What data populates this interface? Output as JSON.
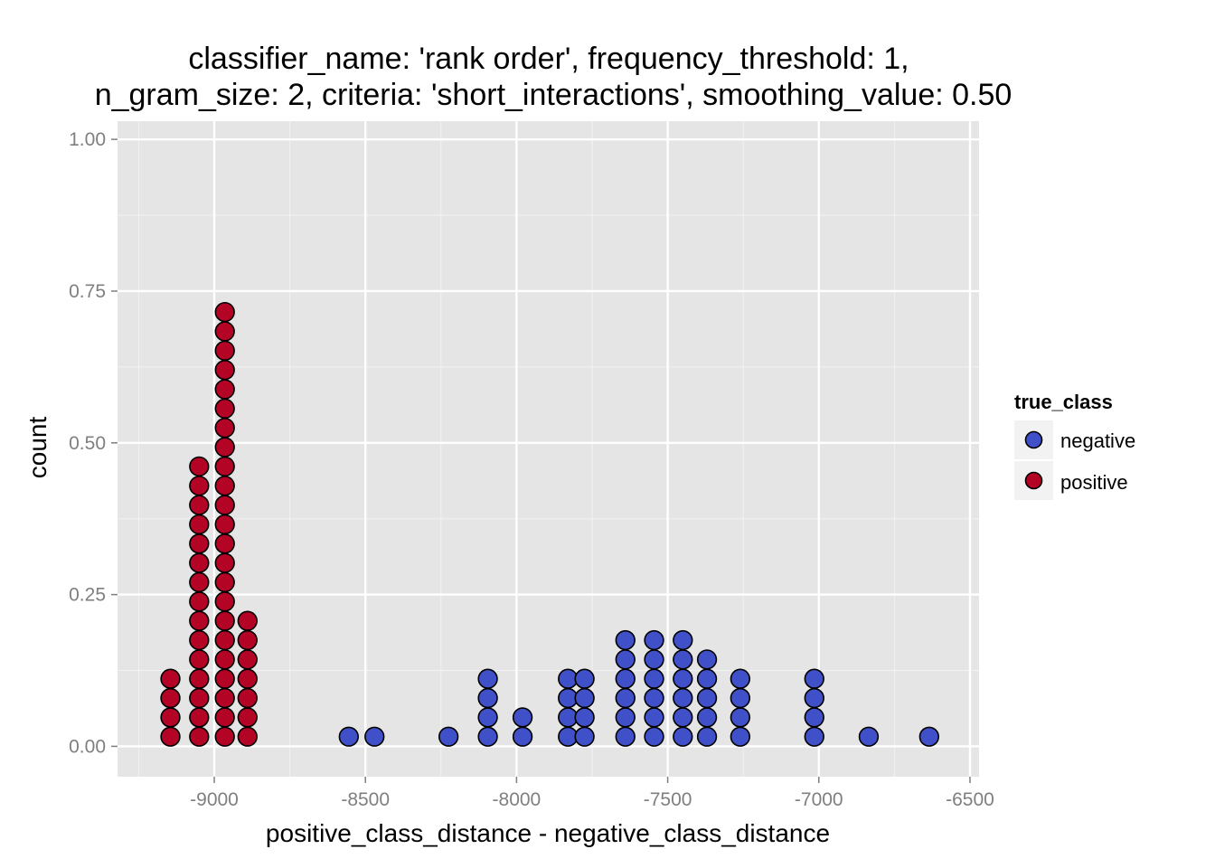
{
  "chart_data": {
    "type": "scatter",
    "subtype": "dotplot",
    "title_lines": [
      "classifier_name: 'rank order', frequency_threshold: 1,",
      "n_gram_size: 2, criteria: 'short_interactions', smoothing_value: 0.50"
    ],
    "xlabel": "positive_class_distance - negative_class_distance",
    "ylabel": "count",
    "xlim": [
      -9320,
      -6470
    ],
    "ylim": [
      -0.05,
      1.03
    ],
    "x_ticks": [
      -9000,
      -8500,
      -8000,
      -7500,
      -7000,
      -6500
    ],
    "x_tick_labels": [
      "-9000",
      "-8500",
      "-8000",
      "-7500",
      "-7000",
      "-6500"
    ],
    "y_ticks": [
      0.0,
      0.25,
      0.5,
      0.75,
      1.0
    ],
    "y_tick_labels": [
      "0.00",
      "0.25",
      "0.50",
      "0.75",
      "1.00"
    ],
    "grid": true,
    "legend": {
      "title": "true_class",
      "position": "right",
      "entries": [
        {
          "label": "negative",
          "color": "#4050c8"
        },
        {
          "label": "positive",
          "color": "#b40426"
        }
      ]
    },
    "series": [
      {
        "name": "positive",
        "color": "#b40426",
        "stacks": [
          {
            "x": -9145,
            "count": 4
          },
          {
            "x": -9050,
            "count": 15
          },
          {
            "x": -8965,
            "count": 23
          },
          {
            "x": -8890,
            "count": 7
          }
        ]
      },
      {
        "name": "negative",
        "color": "#4050c8",
        "stacks": [
          {
            "x": -8555,
            "count": 1
          },
          {
            "x": -8470,
            "count": 1
          },
          {
            "x": -8225,
            "count": 1
          },
          {
            "x": -8095,
            "count": 4
          },
          {
            "x": -7980,
            "count": 2
          },
          {
            "x": -7830,
            "count": 4
          },
          {
            "x": -7775,
            "count": 4
          },
          {
            "x": -7640,
            "count": 6
          },
          {
            "x": -7545,
            "count": 6
          },
          {
            "x": -7450,
            "count": 6
          },
          {
            "x": -7370,
            "count": 5
          },
          {
            "x": -7260,
            "count": 4
          },
          {
            "x": -7015,
            "count": 4
          },
          {
            "x": -6835,
            "count": 1
          },
          {
            "x": -6635,
            "count": 1
          }
        ]
      }
    ],
    "dot_spacing": 0.0318
  },
  "colors": {
    "panel_background": "#e5e5e5",
    "grid_major": "#ffffff",
    "grid_minor": "#f2f2f2",
    "legend_key_background": "#f2f2f2",
    "dot_stroke": "#000000"
  }
}
